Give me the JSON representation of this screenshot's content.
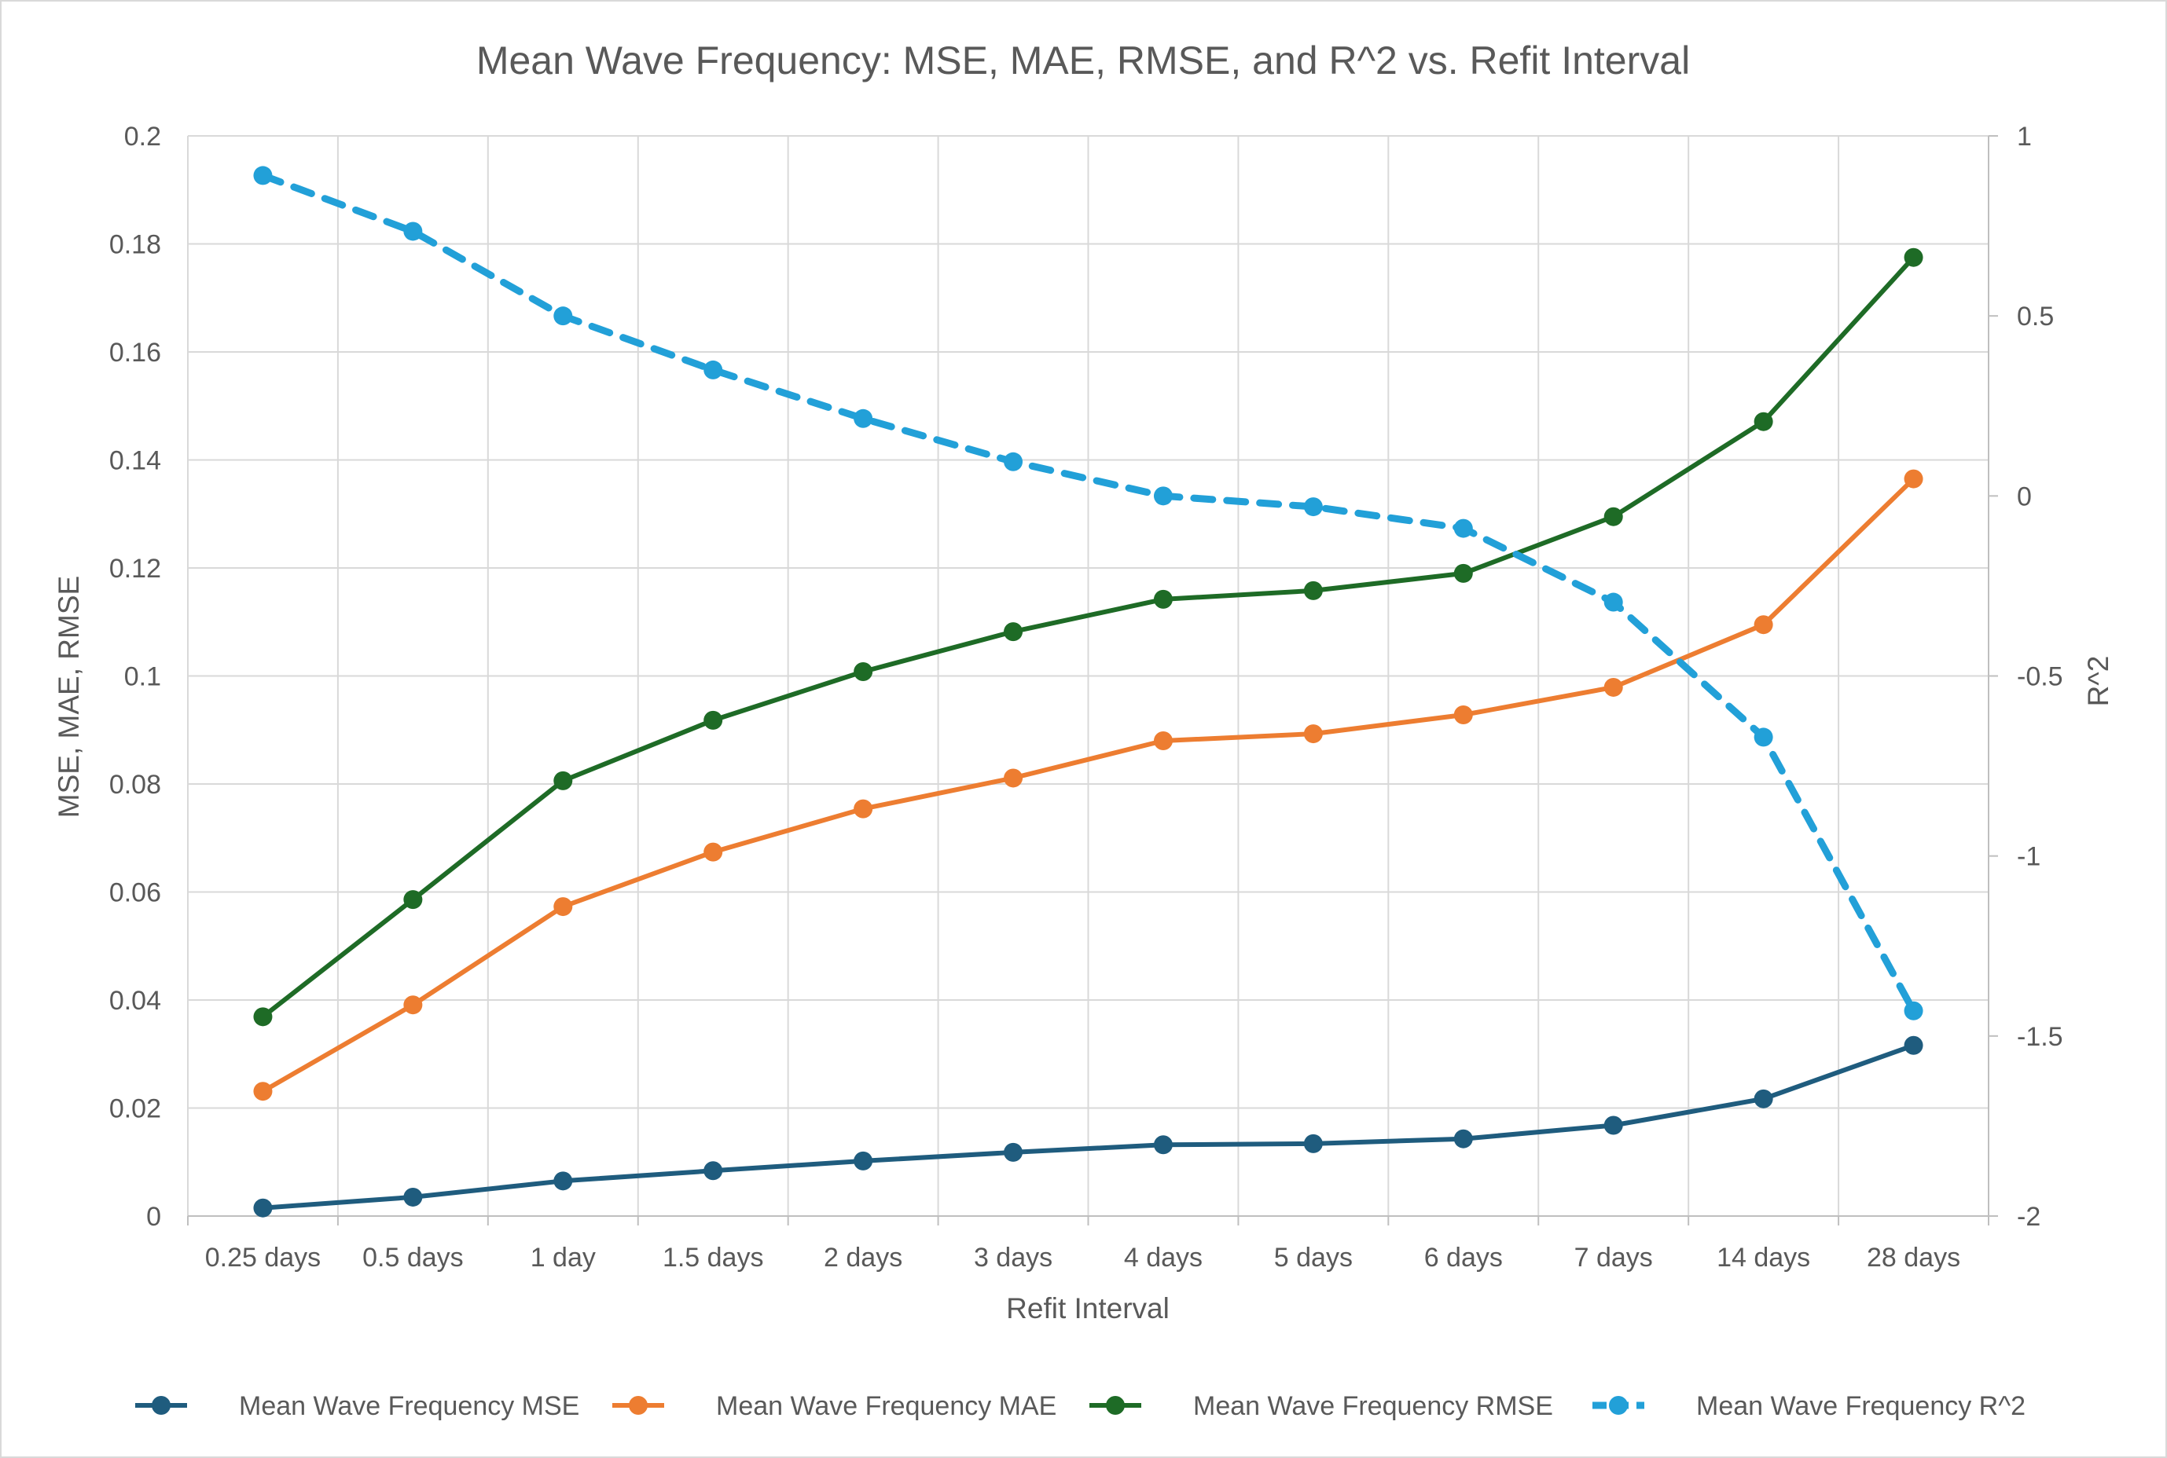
{
  "chart_data": {
    "type": "line",
    "title": "Mean Wave Frequency: MSE, MAE, RMSE, and R^2 vs. Refit Interval",
    "xlabel": "Refit Interval",
    "ylabel": "MSE, MAE, RMSE",
    "y2label": "R^2",
    "categories": [
      "0.25 days",
      "0.5 days",
      "1 day",
      "1.5 days",
      "2 days",
      "3 days",
      "4 days",
      "5 days",
      "6 days",
      "7 days",
      "14 days",
      "28 days"
    ],
    "ylim": [
      0,
      0.2
    ],
    "yticks": [
      "0",
      "0.02",
      "0.04",
      "0.06",
      "0.08",
      "0.1",
      "0.12",
      "0.14",
      "0.16",
      "0.18",
      "0.2"
    ],
    "y2lim": [
      -2,
      1
    ],
    "y2ticks": [
      "-2",
      "-1.5",
      "-1",
      "-0.5",
      "0",
      "0.5",
      "1"
    ],
    "grid": true,
    "legend_position": "bottom",
    "series": [
      {
        "name": "Mean Wave Frequency MSE",
        "axis": "left",
        "color": "#1f5c7e",
        "dashed": false,
        "values": [
          0.0015,
          0.0035,
          0.0065,
          0.0084,
          0.0102,
          0.0118,
          0.0132,
          0.0134,
          0.0143,
          0.0168,
          0.0217,
          0.0316
        ]
      },
      {
        "name": "Mean Wave Frequency MAE",
        "axis": "left",
        "color": "#ed7d31",
        "dashed": false,
        "values": [
          0.0231,
          0.0391,
          0.0573,
          0.0674,
          0.0754,
          0.0811,
          0.088,
          0.0893,
          0.0928,
          0.0979,
          0.1095,
          0.1365
        ]
      },
      {
        "name": "Mean Wave Frequency RMSE",
        "axis": "left",
        "color": "#1e6b26",
        "dashed": false,
        "values": [
          0.0369,
          0.0586,
          0.0806,
          0.0918,
          0.1008,
          0.1082,
          0.1142,
          0.1158,
          0.119,
          0.1295,
          0.1471,
          0.1775
        ]
      },
      {
        "name": "Mean Wave Frequency R^2",
        "axis": "right",
        "color": "#22a0d8",
        "dashed": true,
        "values": [
          0.89,
          0.735,
          0.5,
          0.35,
          0.215,
          0.095,
          0.0,
          -0.03,
          -0.09,
          -0.295,
          -0.67,
          -1.43
        ]
      }
    ]
  }
}
